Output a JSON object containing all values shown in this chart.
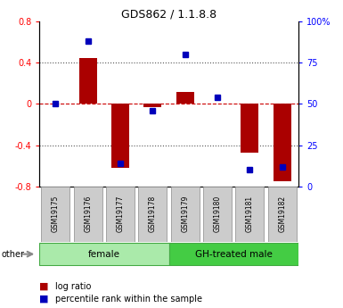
{
  "title": "GDS862 / 1.1.8.8",
  "samples": [
    "GSM19175",
    "GSM19176",
    "GSM19177",
    "GSM19178",
    "GSM19179",
    "GSM19180",
    "GSM19181",
    "GSM19182"
  ],
  "log_ratio": [
    0.0,
    0.45,
    -0.62,
    -0.03,
    0.12,
    0.0,
    -0.47,
    -0.75
  ],
  "percentile_rank": [
    50,
    88,
    14,
    46,
    80,
    54,
    10,
    12
  ],
  "groups": [
    {
      "label": "female",
      "start": 0,
      "end": 4,
      "color": "#aaeaaa"
    },
    {
      "label": "GH-treated male",
      "start": 4,
      "end": 8,
      "color": "#44cc44"
    }
  ],
  "ylim_left": [
    -0.8,
    0.8
  ],
  "ylim_right": [
    0,
    100
  ],
  "yticks_left": [
    -0.8,
    -0.4,
    0.0,
    0.4,
    0.8
  ],
  "yticks_right": [
    0,
    25,
    50,
    75,
    100
  ],
  "ytick_labels_right": [
    "0",
    "25",
    "50",
    "75",
    "100%"
  ],
  "bar_color": "#aa0000",
  "dot_color": "#0000bb",
  "hline_color": "#cc0000",
  "dotted_color": "#555555",
  "bg_color": "#ffffff",
  "plot_bg": "#ffffff",
  "legend_bar_label": "log ratio",
  "legend_dot_label": "percentile rank within the sample",
  "other_label": "other",
  "gray_box_color": "#cccccc",
  "gray_box_edge": "#999999",
  "group_edge_color": "#44aa44"
}
